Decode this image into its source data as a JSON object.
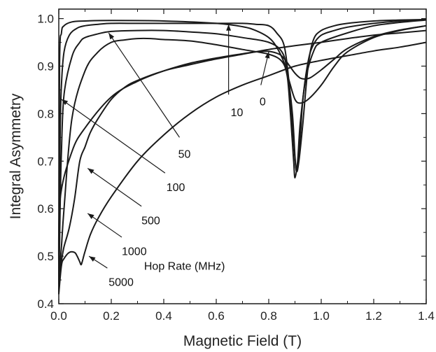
{
  "chart_data": {
    "type": "line",
    "xlabel": "Magnetic Field (T)",
    "ylabel": "Integral Asymmetry",
    "xlim": [
      0.0,
      1.4
    ],
    "ylim": [
      0.4,
      1.02
    ],
    "xticks": [
      "0.0",
      "0.2",
      "0.4",
      "0.6",
      "0.8",
      "1.0",
      "1.2",
      "1.4"
    ],
    "yticks": [
      "0.4",
      "0.5",
      "0.6",
      "0.7",
      "0.8",
      "0.9",
      "1.0"
    ],
    "grid": false,
    "legend_title": "Hop Rate (MHz)",
    "series": [
      {
        "name": "0",
        "x": [
          0,
          0.005,
          0.05,
          0.1,
          0.2,
          0.3,
          0.4,
          0.5,
          0.6,
          0.7,
          0.75,
          0.8,
          0.84,
          0.86,
          0.88,
          0.9,
          0.92,
          0.94,
          0.96,
          1.0,
          1.05,
          1.1,
          1.2,
          1.3,
          1.4
        ],
        "y": [
          0.46,
          0.62,
          0.72,
          0.77,
          0.835,
          0.868,
          0.89,
          0.906,
          0.917,
          0.926,
          0.93,
          0.931,
          0.925,
          0.915,
          0.9,
          0.885,
          0.875,
          0.873,
          0.876,
          0.892,
          0.915,
          0.937,
          0.962,
          0.976,
          0.985
        ]
      },
      {
        "name": "10",
        "x": [
          0,
          0.003,
          0.01,
          0.02,
          0.05,
          0.1,
          0.2,
          0.4,
          0.6,
          0.7,
          0.75,
          0.8,
          0.83,
          0.86,
          0.88,
          0.9,
          0.92,
          0.95,
          1.0,
          1.05,
          1.1,
          1.2,
          1.3,
          1.4
        ],
        "y": [
          0.44,
          0.9,
          0.97,
          0.985,
          0.993,
          0.995,
          0.996,
          0.995,
          0.99,
          0.983,
          0.975,
          0.96,
          0.94,
          0.905,
          0.865,
          0.83,
          0.822,
          0.83,
          0.86,
          0.9,
          0.93,
          0.96,
          0.975,
          0.985
        ]
      },
      {
        "name": "50",
        "x": [
          0,
          0.005,
          0.01,
          0.02,
          0.04,
          0.07,
          0.1,
          0.15,
          0.2,
          0.3,
          0.4,
          0.5,
          0.6,
          0.7,
          0.75,
          0.8,
          0.83,
          0.86,
          0.88,
          0.895,
          0.905,
          0.915,
          0.93,
          0.95,
          0.97,
          1.0,
          1.05,
          1.1,
          1.2,
          1.3,
          1.4
        ],
        "y": [
          0.42,
          0.75,
          0.86,
          0.93,
          0.965,
          0.98,
          0.985,
          0.988,
          0.99,
          0.99,
          0.99,
          0.99,
          0.99,
          0.99,
          0.988,
          0.985,
          0.97,
          0.94,
          0.85,
          0.74,
          0.68,
          0.7,
          0.78,
          0.9,
          0.955,
          0.975,
          0.985,
          0.99,
          0.995,
          0.997,
          0.998
        ]
      },
      {
        "name": "100",
        "x": [
          0,
          0.005,
          0.01,
          0.02,
          0.05,
          0.08,
          0.1,
          0.15,
          0.2,
          0.3,
          0.4,
          0.5,
          0.6,
          0.7,
          0.8,
          0.85,
          0.87,
          0.89,
          0.9,
          0.905,
          0.91,
          0.92,
          0.93,
          0.95,
          0.97,
          1.0,
          1.05,
          1.1,
          1.2,
          1.3,
          1.4
        ],
        "y": [
          0.42,
          0.6,
          0.72,
          0.84,
          0.92,
          0.95,
          0.96,
          0.968,
          0.973,
          0.975,
          0.975,
          0.972,
          0.968,
          0.96,
          0.95,
          0.93,
          0.89,
          0.8,
          0.71,
          0.68,
          0.69,
          0.75,
          0.83,
          0.91,
          0.945,
          0.965,
          0.975,
          0.982,
          0.99,
          0.995,
          0.998
        ]
      },
      {
        "name": "500",
        "x": [
          0,
          0.01,
          0.02,
          0.05,
          0.1,
          0.15,
          0.2,
          0.25,
          0.3,
          0.35,
          0.4,
          0.5,
          0.6,
          0.7,
          0.8,
          0.85,
          0.87,
          0.88,
          0.89,
          0.895,
          0.9,
          0.91,
          0.92,
          0.94,
          0.97,
          1.0,
          1.1,
          1.2,
          1.3,
          1.4
        ],
        "y": [
          0.45,
          0.52,
          0.6,
          0.79,
          0.89,
          0.93,
          0.95,
          0.955,
          0.958,
          0.958,
          0.956,
          0.953,
          0.945,
          0.935,
          0.925,
          0.91,
          0.88,
          0.82,
          0.74,
          0.7,
          0.665,
          0.7,
          0.78,
          0.87,
          0.93,
          0.95,
          0.97,
          0.985,
          0.992,
          0.997
        ]
      },
      {
        "name": "1000",
        "x": [
          0,
          0.01,
          0.02,
          0.04,
          0.06,
          0.08,
          0.1,
          0.12,
          0.15,
          0.2,
          0.25,
          0.3,
          0.4,
          0.5,
          0.6,
          0.7,
          0.8,
          0.9,
          1.0,
          1.1,
          1.2,
          1.3,
          1.4
        ],
        "y": [
          0.46,
          0.49,
          0.52,
          0.56,
          0.62,
          0.7,
          0.73,
          0.76,
          0.79,
          0.83,
          0.855,
          0.87,
          0.89,
          0.903,
          0.915,
          0.925,
          0.935,
          0.943,
          0.95,
          0.958,
          0.965,
          0.97,
          0.975
        ]
      },
      {
        "name": "5000",
        "x": [
          0,
          0.01,
          0.02,
          0.04,
          0.06,
          0.07,
          0.08,
          0.085,
          0.09,
          0.1,
          0.12,
          0.15,
          0.2,
          0.3,
          0.4,
          0.5,
          0.6,
          0.7,
          0.8,
          0.9,
          1.0,
          1.1,
          1.2,
          1.3,
          1.4
        ],
        "y": [
          0.42,
          0.48,
          0.495,
          0.508,
          0.508,
          0.5,
          0.488,
          0.482,
          0.49,
          0.51,
          0.545,
          0.58,
          0.625,
          0.7,
          0.755,
          0.8,
          0.835,
          0.86,
          0.88,
          0.9,
          0.912,
          0.922,
          0.932,
          0.94,
          0.95
        ]
      }
    ],
    "annotations": [
      {
        "text": "0",
        "series": "0",
        "label_at": [
          0.765,
          0.835
        ],
        "arrow_from": [
          0.77,
          0.86
        ],
        "arrow_to": [
          0.8,
          0.93
        ]
      },
      {
        "text": "10",
        "series": "10",
        "label_at": [
          0.655,
          0.812
        ],
        "arrow_from": [
          0.647,
          0.84
        ],
        "arrow_to": [
          0.647,
          0.988
        ]
      },
      {
        "text": "50",
        "series": "50",
        "label_at": [
          0.455,
          0.725
        ],
        "arrow_from": [
          0.46,
          0.75
        ],
        "arrow_to": [
          0.19,
          0.97
        ]
      },
      {
        "text": "100",
        "series": "100",
        "label_at": [
          0.41,
          0.655
        ],
        "arrow_from": [
          0.405,
          0.675
        ],
        "arrow_to": [
          0.01,
          0.83
        ]
      },
      {
        "text": "500",
        "series": "500",
        "label_at": [
          0.315,
          0.585
        ],
        "arrow_from": [
          0.315,
          0.605
        ],
        "arrow_to": [
          0.11,
          0.685
        ]
      },
      {
        "text": "1000",
        "series": "1000",
        "label_at": [
          0.24,
          0.52
        ],
        "arrow_from": [
          0.24,
          0.54
        ],
        "arrow_to": [
          0.11,
          0.59
        ]
      },
      {
        "text": "5000",
        "series": "5000",
        "label_at": [
          0.19,
          0.455
        ],
        "arrow_from": [
          0.185,
          0.475
        ],
        "arrow_to": [
          0.115,
          0.5
        ]
      }
    ]
  }
}
